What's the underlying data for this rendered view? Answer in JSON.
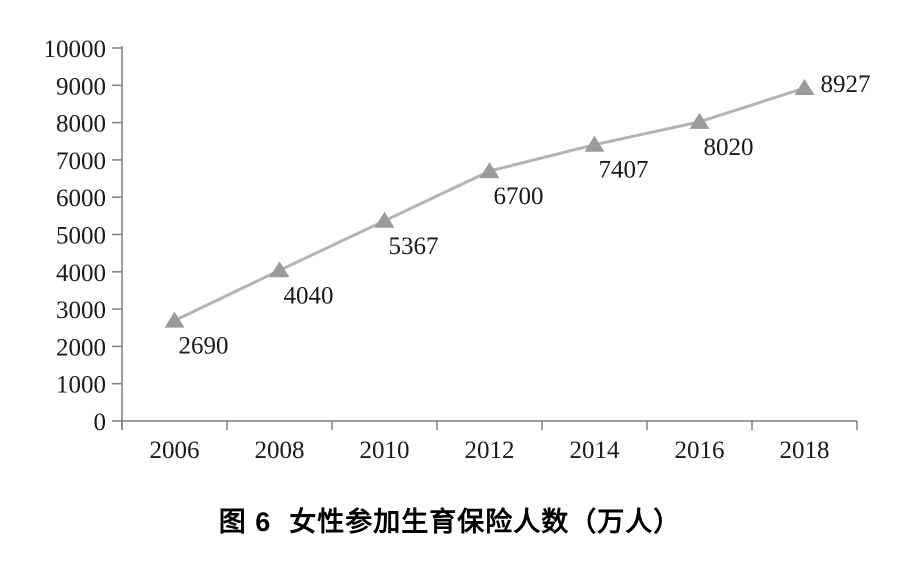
{
  "caption": {
    "figure_label": "图 6",
    "title": "女性参加生育保险人数（万人）"
  },
  "chart_data": {
    "type": "line",
    "title": "图 6  女性参加生育保险人数（万人）",
    "xlabel": "",
    "ylabel": "",
    "categories": [
      "2006",
      "2008",
      "2010",
      "2012",
      "2014",
      "2016",
      "2018"
    ],
    "values": [
      2690,
      4040,
      5367,
      6700,
      7407,
      8020,
      8927
    ],
    "data_labels": [
      "2690",
      "4040",
      "5367",
      "6700",
      "7407",
      "8020",
      "8927"
    ],
    "y_ticks": [
      0,
      1000,
      2000,
      3000,
      4000,
      5000,
      6000,
      7000,
      8000,
      9000,
      10000
    ],
    "ylim": [
      0,
      10000
    ],
    "grid": false,
    "legend": "none",
    "marker": "triangle",
    "data_labels_shown": true,
    "colors": {
      "line": "#b4b4b4",
      "marker": "#9b9b9b",
      "axis": "#7f7f7f",
      "text": "#1a1a1a",
      "caption": "#000000",
      "background": "#ffffff"
    }
  }
}
